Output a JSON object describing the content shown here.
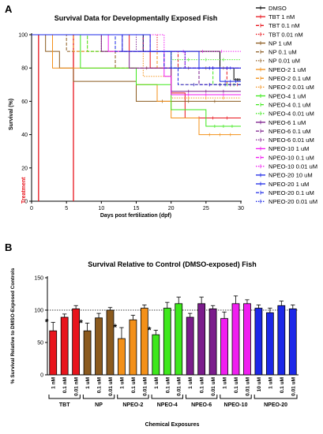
{
  "panels": {
    "a": "A",
    "b": "B"
  },
  "chart_data": [
    {
      "type": "line",
      "title": "Survival Data for Developmentally Exposed Fish",
      "xlabel": "Days post fertilization (dpf)",
      "ylabel": "Survival (%)",
      "xlim": [
        0,
        30
      ],
      "ylim": [
        0,
        100
      ],
      "xticks": [
        0,
        5,
        10,
        15,
        20,
        25,
        30
      ],
      "yticks": [
        0,
        20,
        40,
        60,
        80,
        100
      ],
      "grid": false,
      "legend": "right",
      "annotation": {
        "text": "Treatment",
        "x": [
          1,
          6
        ],
        "color": "#e8141c"
      },
      "series": [
        {
          "name": "DMSO",
          "color": "#000000",
          "dash": "solid",
          "steps": [
            [
              0,
              100
            ],
            [
              16,
              90
            ],
            [
              27,
              80
            ],
            [
              29,
              73
            ],
            [
              30,
              73
            ]
          ]
        },
        {
          "name": "TBT 1 nM",
          "color": "#e8141c",
          "dash": "solid",
          "steps": [
            [
              0,
              100
            ],
            [
              14,
              90
            ],
            [
              17,
              80
            ],
            [
              20,
              65
            ],
            [
              22,
              50
            ],
            [
              30,
              50
            ]
          ]
        },
        {
          "name": "TBT 0.1 nM",
          "color": "#e8141c",
          "dash": "dash",
          "steps": [
            [
              0,
              100
            ],
            [
              16,
              90
            ],
            [
              21,
              80
            ],
            [
              28,
              70
            ],
            [
              30,
              70
            ]
          ]
        },
        {
          "name": "TBT 0.01 nM",
          "color": "#e8141c",
          "dash": "dot",
          "steps": [
            [
              0,
              100
            ],
            [
              18,
              90
            ],
            [
              22,
              80
            ],
            [
              30,
              80
            ]
          ]
        },
        {
          "name": "NP 1 uM",
          "color": "#8b5a1e",
          "dash": "solid",
          "steps": [
            [
              0,
              100
            ],
            [
              2,
              90
            ],
            [
              4,
              80
            ],
            [
              6,
              72
            ],
            [
              13,
              72
            ],
            [
              15,
              60
            ],
            [
              30,
              60
            ]
          ]
        },
        {
          "name": "NP 0.1 uM",
          "color": "#8b5a1e",
          "dash": "dash",
          "steps": [
            [
              0,
              100
            ],
            [
              5,
              90
            ],
            [
              12,
              80
            ],
            [
              30,
              80
            ]
          ]
        },
        {
          "name": "NP 0.01 uM",
          "color": "#8b5a1e",
          "dash": "dot",
          "steps": [
            [
              0,
              100
            ],
            [
              10,
              90
            ],
            [
              20,
              80
            ],
            [
              30,
              80
            ]
          ]
        },
        {
          "name": "NPEO-2 1 uM",
          "color": "#f39019",
          "dash": "solid",
          "steps": [
            [
              0,
              100
            ],
            [
              3,
              80
            ],
            [
              15,
              70
            ],
            [
              18,
              60
            ],
            [
              20,
              50
            ],
            [
              24,
              40
            ],
            [
              30,
              40
            ]
          ]
        },
        {
          "name": "NPEO-2 0.1 uM",
          "color": "#f39019",
          "dash": "dash",
          "steps": [
            [
              0,
              100
            ],
            [
              6,
              90
            ],
            [
              18,
              80
            ],
            [
              21,
              70
            ],
            [
              30,
              70
            ]
          ]
        },
        {
          "name": "NPEO-2 0.01 uM",
          "color": "#f39019",
          "dash": "dot",
          "steps": [
            [
              0,
              100
            ],
            [
              8,
              90
            ],
            [
              16,
              75
            ],
            [
              20,
              62
            ],
            [
              30,
              62
            ]
          ]
        },
        {
          "name": "NPEO-4 1 uM",
          "color": "#3ee81c",
          "dash": "solid",
          "steps": [
            [
              0,
              100
            ],
            [
              7,
              80
            ],
            [
              15,
              70
            ],
            [
              20,
              55
            ],
            [
              25,
              45
            ],
            [
              30,
              45
            ]
          ]
        },
        {
          "name": "NPEO-4 0.1 uM",
          "color": "#3ee81c",
          "dash": "dash",
          "steps": [
            [
              0,
              100
            ],
            [
              8,
              90
            ],
            [
              20,
              80
            ],
            [
              26,
              70
            ],
            [
              30,
              70
            ]
          ]
        },
        {
          "name": "NPEO-4 0.01 uM",
          "color": "#3ee81c",
          "dash": "dot",
          "steps": [
            [
              0,
              100
            ],
            [
              12,
              90
            ],
            [
              20,
              85
            ],
            [
              30,
              85
            ]
          ]
        },
        {
          "name": "NPEO-6 1 uM",
          "color": "#7b1c8c",
          "dash": "solid",
          "steps": [
            [
              0,
              100
            ],
            [
              10,
              90
            ],
            [
              14,
              80
            ],
            [
              20,
              66
            ],
            [
              30,
              66
            ]
          ]
        },
        {
          "name": "NPEO-6 0.1 uM",
          "color": "#7b1c8c",
          "dash": "dash",
          "steps": [
            [
              0,
              100
            ],
            [
              13,
              90
            ],
            [
              19,
              80
            ],
            [
              24,
              70
            ],
            [
              30,
              70
            ]
          ]
        },
        {
          "name": "NPEO-6 0.01 uM",
          "color": "#7b1c8c",
          "dash": "dot",
          "steps": [
            [
              0,
              100
            ],
            [
              15,
              90
            ],
            [
              22,
              80
            ],
            [
              30,
              80
            ]
          ]
        },
        {
          "name": "NPEO-10 1 uM",
          "color": "#f01ef0",
          "dash": "solid",
          "steps": [
            [
              0,
              100
            ],
            [
              11,
              90
            ],
            [
              19,
              75
            ],
            [
              20,
              64
            ],
            [
              30,
              64
            ]
          ]
        },
        {
          "name": "NPEO-10 0.1 uM",
          "color": "#f01ef0",
          "dash": "dash",
          "steps": [
            [
              0,
              100
            ],
            [
              17,
              90
            ],
            [
              22,
              80
            ],
            [
              30,
              80
            ]
          ]
        },
        {
          "name": "NPEO-10 0.01 uM",
          "color": "#f01ef0",
          "dash": "dot",
          "steps": [
            [
              0,
              100
            ],
            [
              19,
              90
            ],
            [
              30,
              90
            ]
          ]
        },
        {
          "name": "NPEO-20 10 uM",
          "color": "#1c28e8",
          "dash": "solid",
          "steps": [
            [
              0,
              100
            ],
            [
              17,
              90
            ],
            [
              24,
              80
            ],
            [
              30,
              80
            ]
          ]
        },
        {
          "name": "NPEO-20 1 uM",
          "color": "#1c28e8",
          "dash": "solid",
          "steps": [
            [
              0,
              100
            ],
            [
              13,
              90
            ],
            [
              20,
              80
            ],
            [
              27,
              72
            ],
            [
              30,
              72
            ]
          ]
        },
        {
          "name": "NPEO-20 0.1 uM",
          "color": "#1c28e8",
          "dash": "dash",
          "steps": [
            [
              0,
              100
            ],
            [
              12,
              90
            ],
            [
              19,
              80
            ],
            [
              21,
              70
            ],
            [
              30,
              70
            ]
          ]
        },
        {
          "name": "NPEO-20 0.01 uM",
          "color": "#1c28e8",
          "dash": "dot",
          "steps": [
            [
              0,
              100
            ],
            [
              16,
              90
            ],
            [
              22,
              80
            ],
            [
              30,
              80
            ]
          ]
        }
      ]
    },
    {
      "type": "bar",
      "title": "Survival Relative to Control (DMSO-exposed) Fish",
      "xlabel": "Chemical Exposures",
      "ylabel": "% Survival Relative to DMSO-Exposed Controls",
      "ylim": [
        0,
        150
      ],
      "yticks": [
        0,
        50,
        100,
        150
      ],
      "reference_line": 100,
      "grid": false,
      "bars": [
        {
          "label": "1 nM",
          "value": 68,
          "error": 13,
          "color": "#e8141c",
          "sig": "*"
        },
        {
          "label": "0.1 nM",
          "value": 89,
          "error": 5,
          "color": "#e8141c",
          "sig": ""
        },
        {
          "label": "0.01 nM",
          "value": 102,
          "error": 5,
          "color": "#e8141c",
          "sig": ""
        },
        {
          "label": "1 uM",
          "value": 68,
          "error": 12,
          "color": "#8b5a1e",
          "sig": "*"
        },
        {
          "label": "0.1 uM",
          "value": 88,
          "error": 7,
          "color": "#8b5a1e",
          "sig": ""
        },
        {
          "label": "0.01 uM",
          "value": 100,
          "error": 4,
          "color": "#8b5a1e",
          "sig": ""
        },
        {
          "label": "1 uM",
          "value": 56,
          "error": 17,
          "color": "#f39019",
          "sig": "*"
        },
        {
          "label": "0.1 uM",
          "value": 85,
          "error": 7,
          "color": "#f39019",
          "sig": ""
        },
        {
          "label": "0.01 uM",
          "value": 103,
          "error": 5,
          "color": "#f39019",
          "sig": ""
        },
        {
          "label": "1 uM",
          "value": 62,
          "error": 7,
          "color": "#3ee81c",
          "sig": "*"
        },
        {
          "label": "0.1 uM",
          "value": 103,
          "error": 9,
          "color": "#3ee81c",
          "sig": ""
        },
        {
          "label": "0.01 uM",
          "value": 110,
          "error": 10,
          "color": "#3ee81c",
          "sig": ""
        },
        {
          "label": "1 uM",
          "value": 89,
          "error": 6,
          "color": "#7b1c8c",
          "sig": ""
        },
        {
          "label": "0.1 uM",
          "value": 110,
          "error": 10,
          "color": "#7b1c8c",
          "sig": ""
        },
        {
          "label": "0.01 uM",
          "value": 102,
          "error": 5,
          "color": "#7b1c8c",
          "sig": ""
        },
        {
          "label": "1 uM",
          "value": 87,
          "error": 10,
          "color": "#f01ef0",
          "sig": ""
        },
        {
          "label": "0.1 uM",
          "value": 110,
          "error": 12,
          "color": "#f01ef0",
          "sig": ""
        },
        {
          "label": "0.01 uM",
          "value": 110,
          "error": 6,
          "color": "#f01ef0",
          "sig": ""
        },
        {
          "label": "10 uM",
          "value": 103,
          "error": 5,
          "color": "#1c28e8",
          "sig": ""
        },
        {
          "label": "1 uM",
          "value": 96,
          "error": 7,
          "color": "#1c28e8",
          "sig": ""
        },
        {
          "label": "0.1 uM",
          "value": 107,
          "error": 7,
          "color": "#1c28e8",
          "sig": ""
        },
        {
          "label": "0.01 uM",
          "value": 102,
          "error": 6,
          "color": "#1c28e8",
          "sig": ""
        }
      ],
      "groups": [
        {
          "name": "TBT",
          "start": 0,
          "count": 3
        },
        {
          "name": "NP",
          "start": 3,
          "count": 3
        },
        {
          "name": "NPEO-2",
          "start": 6,
          "count": 3
        },
        {
          "name": "NPEO-4",
          "start": 9,
          "count": 3
        },
        {
          "name": "NPEO-6",
          "start": 12,
          "count": 3
        },
        {
          "name": "NPEO-10",
          "start": 15,
          "count": 3
        },
        {
          "name": "NPEO-20",
          "start": 18,
          "count": 4
        }
      ]
    }
  ]
}
